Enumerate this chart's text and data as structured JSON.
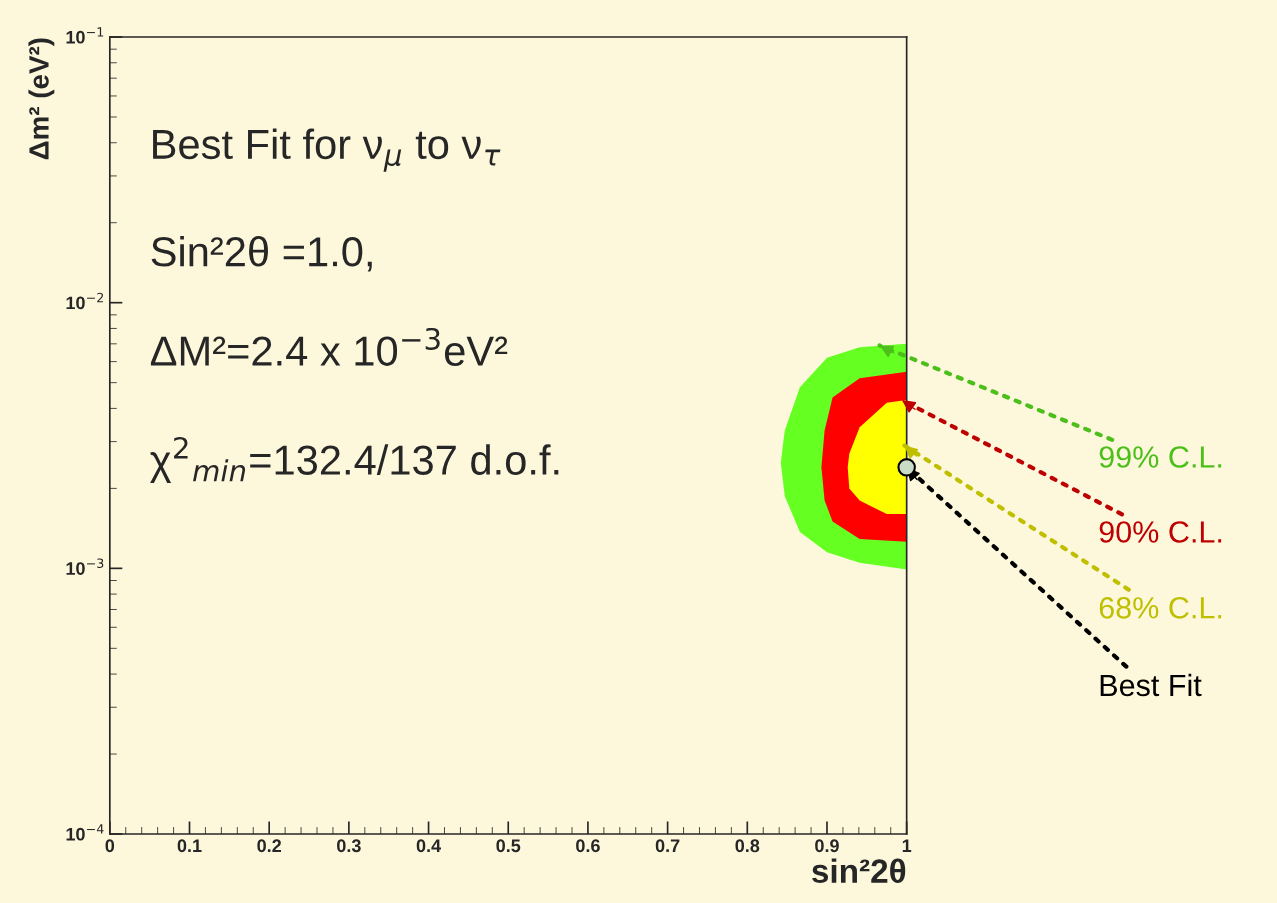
{
  "chart_data": {
    "type": "area",
    "xlabel": "sin²2θ",
    "ylabel": "Δm² (eV²)",
    "log": "y",
    "xlim": [
      0,
      1
    ],
    "ylim": [
      0.0001,
      0.1
    ],
    "xticks": [
      0,
      0.1,
      0.2,
      0.3,
      0.4,
      0.5,
      0.6,
      0.7,
      0.8,
      0.9,
      1
    ],
    "yticks": [
      {
        "value": 0.0001,
        "label": "10$^{−4}$"
      },
      {
        "value": 0.001,
        "label": "10$^{−3}$"
      },
      {
        "value": 0.01,
        "label": "10$^{−2}$"
      },
      {
        "value": 0.1,
        "label": "10$^{−1}$"
      }
    ],
    "grid": false,
    "legend": false,
    "series": [
      {
        "color": "#66ff22",
        "x": [
          0.842,
          0.847,
          0.866,
          0.9,
          0.941,
          1.0
        ],
        "values": [
          null,
          null,
          null,
          null,
          null,
          null
        ],
        "upper": [
          0.0025,
          0.0033,
          0.0048,
          0.0062,
          0.0068,
          0.007
        ],
        "lower": [
          0.0025,
          0.00187,
          0.00137,
          0.00115,
          0.00105,
          0.00099
        ]
      },
      {
        "color": "#ff0000",
        "x": [
          0.893,
          0.897,
          0.907,
          0.941,
          1.0
        ],
        "values": [
          null,
          null,
          null,
          null,
          null
        ],
        "upper": [
          0.0024,
          0.0033,
          0.0044,
          0.0052,
          0.0055
        ],
        "lower": [
          0.0024,
          0.0018,
          0.0015,
          0.00129,
          0.00126
        ]
      },
      {
        "color": "#ffff00",
        "x": [
          0.926,
          0.928,
          0.941,
          0.975,
          1.0
        ],
        "values": [
          null,
          null,
          null,
          null,
          null
        ],
        "upper": [
          0.0024,
          0.0027,
          0.0034,
          0.0042,
          0.0043
        ],
        "lower": [
          0.0024,
          0.002,
          0.0018,
          0.0016,
          0.0016
        ]
      },
      {
        "type": "scatter",
        "color": "#c8dcc8",
        "x": [
          1.0
        ],
        "values": [
          0.0024
        ]
      }
    ],
    "annotations": [
      "Best Fit for ν$_{μ}$ to ν$_{τ}$",
      "Sin²2θ =1.0,",
      "ΔM²=2.4 x 10$^{−3}$eV²",
      "χ$^{2}$$_{min}$=132.4/137 d.o.f.",
      {
        "text": "99% C.L.",
        "x": 0.966,
        "y": 0.0069
      },
      {
        "text": "90% C.L.",
        "x": 0.994,
        "y": 0.0043
      },
      {
        "text": "68% C.L.",
        "x": 0.997,
        "y": 0.0029
      },
      {
        "text": "Best Fit",
        "x": 1.0,
        "y": 0.0024
      }
    ]
  }
}
